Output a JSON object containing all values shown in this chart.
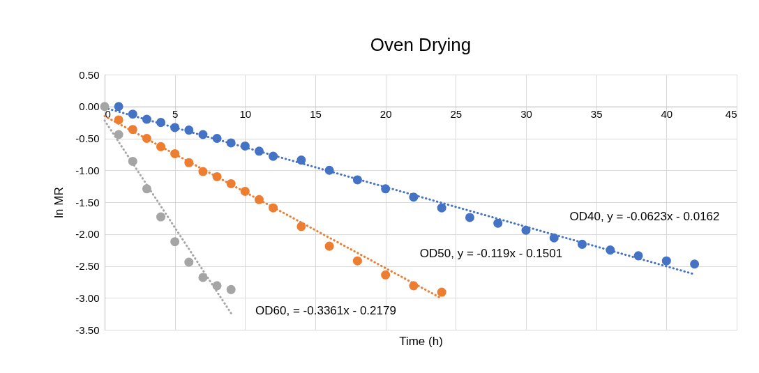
{
  "chart_data": {
    "type": "scatter",
    "title": "Oven Drying",
    "xlabel": "Time (h)",
    "ylabel": "ln MR",
    "xlim": [
      0,
      45
    ],
    "xticks": [
      0,
      5,
      10,
      15,
      20,
      25,
      30,
      35,
      40,
      45
    ],
    "ylim": [
      -3.5,
      0.5
    ],
    "yticks": [
      {
        "value": 0.5,
        "label": "0.50"
      },
      {
        "value": 0,
        "label": "0.00"
      },
      {
        "value": -0.5,
        "label": "-0.50"
      },
      {
        "value": -1,
        "label": "-1.00"
      },
      {
        "value": -1.5,
        "label": "-1.50"
      },
      {
        "value": -2,
        "label": "-2.00"
      },
      {
        "value": -2.5,
        "label": "-2.50"
      },
      {
        "value": -3,
        "label": "-3.00"
      },
      {
        "value": -3.5,
        "label": "-3.50"
      }
    ],
    "grid": true,
    "marker": "circle",
    "series": [
      {
        "type": "line",
        "color": "#4472c4",
        "line_style": "dotted",
        "marker": "none",
        "x": [
          0,
          42
        ],
        "values": [
          -0.02,
          -2.63
        ]
      },
      {
        "type": "line",
        "color": "#ed7d31",
        "line_style": "dotted",
        "marker": "none",
        "x": [
          0,
          24
        ],
        "values": [
          -0.15,
          -3.01
        ]
      },
      {
        "type": "line",
        "color": "#a5a5a5",
        "line_style": "dotted",
        "marker": "none",
        "x": [
          0,
          9
        ],
        "values": [
          -0.22,
          -3.24
        ]
      },
      {
        "color": "#4472c4",
        "x": [
          1,
          2,
          3,
          4,
          5,
          6,
          7,
          8,
          9,
          10,
          11,
          12,
          14,
          16,
          18,
          20,
          22,
          24,
          26,
          28,
          30,
          32,
          34,
          36,
          38,
          40,
          42
        ],
        "values": [
          0.0,
          -0.12,
          -0.2,
          -0.25,
          -0.33,
          -0.37,
          -0.44,
          -0.5,
          -0.57,
          -0.62,
          -0.7,
          -0.78,
          -0.84,
          -1.0,
          -1.15,
          -1.29,
          -1.42,
          -1.59,
          -1.74,
          -1.83,
          -1.94,
          -2.06,
          -2.16,
          -2.25,
          -2.34,
          -2.42,
          -2.47
        ]
      },
      {
        "color": "#ed7d31",
        "x": [
          1,
          2,
          3,
          4,
          5,
          6,
          7,
          8,
          9,
          10,
          11,
          12,
          14,
          16,
          18,
          20,
          22,
          24
        ],
        "values": [
          -0.21,
          -0.36,
          -0.5,
          -0.63,
          -0.74,
          -0.88,
          -1.02,
          -1.1,
          -1.21,
          -1.33,
          -1.46,
          -1.59,
          -1.88,
          -2.19,
          -2.42,
          -2.64,
          -2.81,
          -2.91
        ]
      },
      {
        "color": "#a5a5a5",
        "x": [
          0,
          1,
          2,
          3,
          4,
          5,
          6,
          7,
          8,
          9
        ],
        "values": [
          0.0,
          -0.44,
          -0.86,
          -1.29,
          -1.73,
          -2.12,
          -2.44,
          -2.68,
          -2.81,
          -2.87
        ]
      }
    ],
    "annotations": [
      "OD40, y = -0.0623x - 0.0162",
      "OD50, y = -0.119x - 0.1501",
      "OD60,  = -0.3361x - 0.2179"
    ]
  }
}
